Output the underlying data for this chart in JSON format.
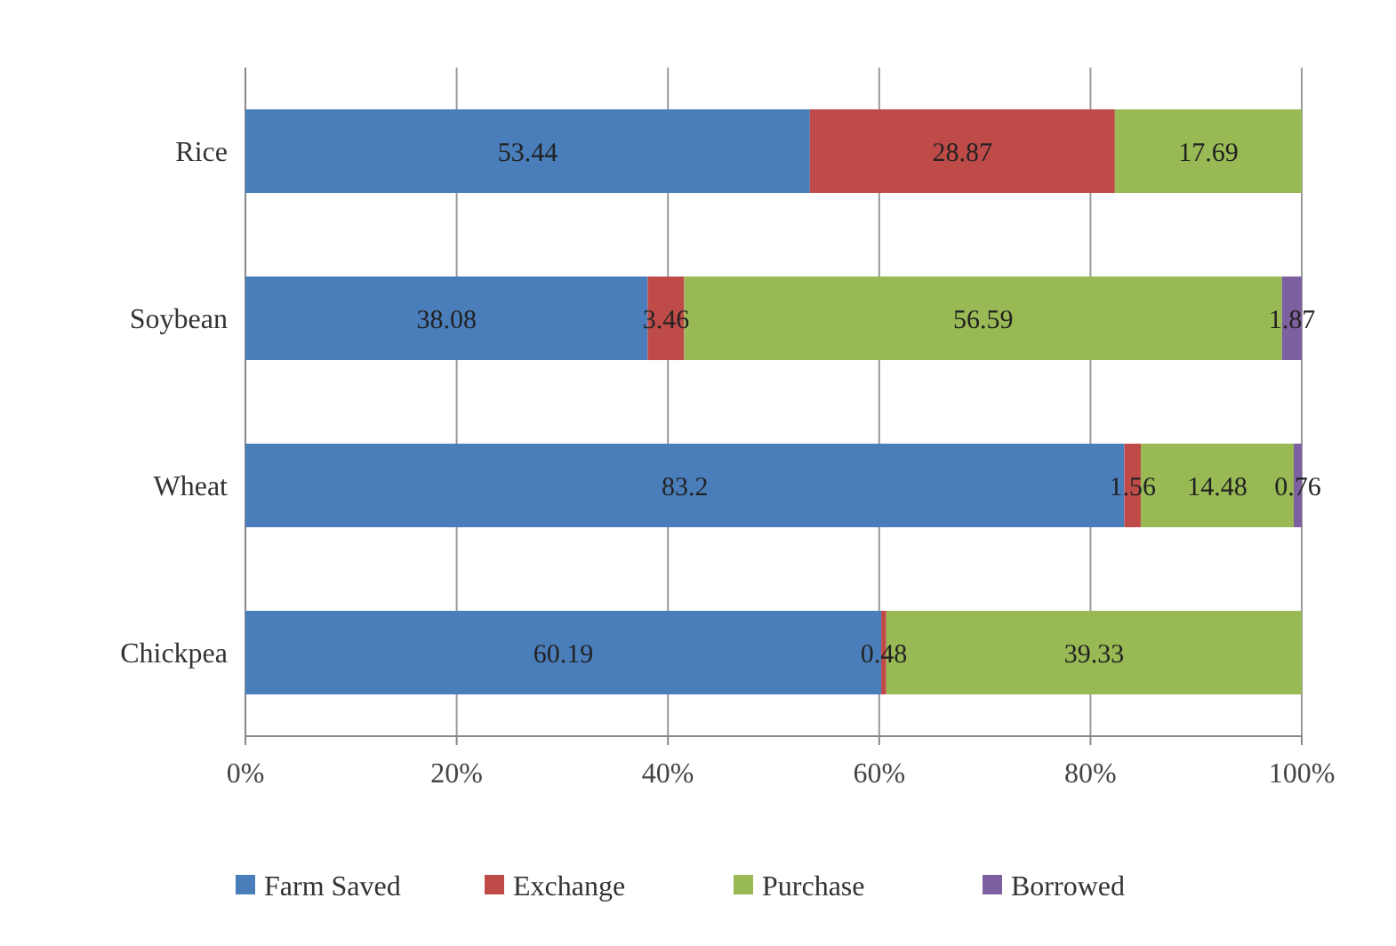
{
  "chart_data": {
    "type": "bar",
    "orientation": "horizontal",
    "stacked": true,
    "categories": [
      "Rice",
      "Soybean",
      "Wheat",
      "Chickpea"
    ],
    "series": [
      {
        "name": "Farm Saved",
        "color": "#4a7ebb",
        "values": [
          53.44,
          38.08,
          83.2,
          60.19
        ]
      },
      {
        "name": "Exchange",
        "color": "#be4b48",
        "values": [
          28.87,
          3.46,
          1.56,
          0.48
        ]
      },
      {
        "name": "Purchase",
        "color": "#98b954",
        "values": [
          17.69,
          56.59,
          14.48,
          39.33
        ]
      },
      {
        "name": "Borrowed",
        "color": "#7d60a0",
        "values": [
          null,
          1.87,
          0.76,
          null
        ]
      }
    ],
    "xlim": [
      0,
      100
    ],
    "xticks": [
      {
        "value": 0,
        "label": "0%"
      },
      {
        "value": 20,
        "label": "20%"
      },
      {
        "value": 40,
        "label": "40%"
      },
      {
        "value": 60,
        "label": "60%"
      },
      {
        "value": 80,
        "label": "80%"
      },
      {
        "value": 100,
        "label": "100%"
      }
    ],
    "grid": "x",
    "legend": "bottom",
    "data_labels": true
  }
}
